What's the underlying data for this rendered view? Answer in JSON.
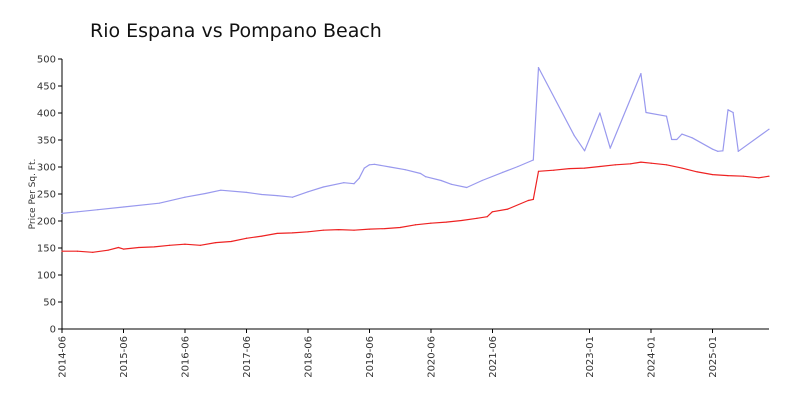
{
  "chart_data": {
    "type": "line",
    "title": "Rio Espana vs Pompano Beach",
    "xlabel": "",
    "ylabel": "Price Per Sq. Ft.",
    "ylim": [
      0,
      500
    ],
    "yticks": [
      0,
      50,
      100,
      150,
      200,
      250,
      300,
      350,
      400,
      450,
      500
    ],
    "xlim": [
      "2014-06",
      "2025-12"
    ],
    "xticks": [
      "2014-06",
      "2015-06",
      "2016-06",
      "2017-06",
      "2018-06",
      "2019-06",
      "2020-06",
      "2021-06",
      "2023-01",
      "2024-01",
      "2025-01"
    ],
    "grid": false,
    "legend": "none",
    "series": [
      {
        "color": "#9999ee",
        "points": [
          [
            "2014-06",
            214
          ],
          [
            "2014-09",
            217
          ],
          [
            "2015-01",
            221
          ],
          [
            "2015-06",
            226
          ],
          [
            "2016-01",
            233
          ],
          [
            "2016-06",
            244
          ],
          [
            "2016-10",
            251
          ],
          [
            "2017-01",
            257
          ],
          [
            "2017-06",
            253
          ],
          [
            "2017-09",
            249
          ],
          [
            "2017-12",
            247
          ],
          [
            "2018-03",
            244
          ],
          [
            "2018-06",
            254
          ],
          [
            "2018-09",
            263
          ],
          [
            "2019-01",
            271
          ],
          [
            "2019-03",
            269
          ],
          [
            "2019-04",
            279
          ],
          [
            "2019-05",
            298
          ],
          [
            "2019-06",
            304
          ],
          [
            "2019-07",
            305
          ],
          [
            "2019-10",
            300
          ],
          [
            "2020-01",
            295
          ],
          [
            "2020-04",
            288
          ],
          [
            "2020-05",
            282
          ],
          [
            "2020-08",
            275
          ],
          [
            "2020-10",
            268
          ],
          [
            "2021-01",
            262
          ],
          [
            "2021-04",
            275
          ],
          [
            "2021-08",
            290
          ],
          [
            "2021-11",
            301
          ],
          [
            "2022-02",
            313
          ],
          [
            "2022-03",
            484
          ],
          [
            "2022-10",
            358
          ],
          [
            "2022-12",
            330
          ],
          [
            "2023-03",
            400
          ],
          [
            "2023-05",
            335
          ],
          [
            "2023-11",
            473
          ],
          [
            "2023-12",
            401
          ],
          [
            "2024-04",
            394
          ],
          [
            "2024-05",
            351
          ],
          [
            "2024-06",
            351
          ],
          [
            "2024-07",
            361
          ],
          [
            "2024-09",
            354
          ],
          [
            "2025-01",
            333
          ],
          [
            "2025-02",
            329
          ],
          [
            "2025-03",
            330
          ],
          [
            "2025-04",
            406
          ],
          [
            "2025-05",
            401
          ],
          [
            "2025-06",
            329
          ],
          [
            "2025-12",
            370
          ]
        ]
      },
      {
        "color": "#ee2222",
        "points": [
          [
            "2014-06",
            144
          ],
          [
            "2014-09",
            144
          ],
          [
            "2014-12",
            142
          ],
          [
            "2015-03",
            146
          ],
          [
            "2015-05",
            151
          ],
          [
            "2015-06",
            148
          ],
          [
            "2015-09",
            151
          ],
          [
            "2015-12",
            152
          ],
          [
            "2016-03",
            155
          ],
          [
            "2016-06",
            157
          ],
          [
            "2016-09",
            155
          ],
          [
            "2016-12",
            160
          ],
          [
            "2017-03",
            162
          ],
          [
            "2017-06",
            168
          ],
          [
            "2017-09",
            172
          ],
          [
            "2017-12",
            177
          ],
          [
            "2018-03",
            178
          ],
          [
            "2018-06",
            180
          ],
          [
            "2018-09",
            183
          ],
          [
            "2018-12",
            184
          ],
          [
            "2019-03",
            183
          ],
          [
            "2019-06",
            185
          ],
          [
            "2019-09",
            186
          ],
          [
            "2019-12",
            188
          ],
          [
            "2020-03",
            193
          ],
          [
            "2020-06",
            196
          ],
          [
            "2020-09",
            198
          ],
          [
            "2020-12",
            201
          ],
          [
            "2021-03",
            205
          ],
          [
            "2021-05",
            208
          ],
          [
            "2021-06",
            217
          ],
          [
            "2021-09",
            222
          ],
          [
            "2022-01",
            238
          ],
          [
            "2022-02",
            240
          ],
          [
            "2022-03",
            292
          ],
          [
            "2022-06",
            294
          ],
          [
            "2022-09",
            297
          ],
          [
            "2022-12",
            298
          ],
          [
            "2023-03",
            301
          ],
          [
            "2023-06",
            304
          ],
          [
            "2023-09",
            306
          ],
          [
            "2023-11",
            309
          ],
          [
            "2024-01",
            307
          ],
          [
            "2024-04",
            304
          ],
          [
            "2024-07",
            298
          ],
          [
            "2024-10",
            291
          ],
          [
            "2025-01",
            286
          ],
          [
            "2025-04",
            284
          ],
          [
            "2025-07",
            283
          ],
          [
            "2025-10",
            280
          ],
          [
            "2025-12",
            283
          ]
        ]
      }
    ]
  }
}
